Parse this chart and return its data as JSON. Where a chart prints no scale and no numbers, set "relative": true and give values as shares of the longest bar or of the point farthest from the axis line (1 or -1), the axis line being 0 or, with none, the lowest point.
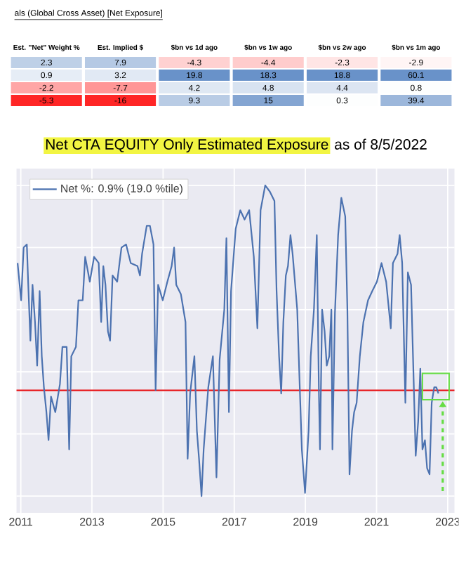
{
  "chart_data": [
    {
      "type": "heatmap",
      "title": "als (Global Cross Asset) [Net Exposure]",
      "categories": [
        "Est. \"Net\" Weight %",
        "Est. Implied $",
        "$bn vs 1d ago",
        "$bn vs 1w ago",
        "$bn vs 2w ago",
        "$bn vs 1m ago"
      ],
      "y_categories": [
        null,
        null,
        null,
        null
      ],
      "cells": [
        [
          2.3,
          7.9,
          -4.3,
          -4.4,
          -2.3,
          -2.9
        ],
        [
          0.9,
          3.2,
          19.8,
          18.3,
          18.8,
          60.1
        ],
        [
          -2.2,
          -7.7,
          4.2,
          4.8,
          4.4,
          0.8
        ],
        [
          -5.3,
          -16,
          9.3,
          15,
          0.3,
          39.4
        ]
      ],
      "data_labels": true
    },
    {
      "type": "line",
      "title": "Net CTA EQUITY Only Estimated Exposure",
      "subtitle": "as of 8/5/2022",
      "x": [
        2010.91,
        2011.01,
        2011.08,
        2011.17,
        2011.21,
        2011.27,
        2011.33,
        2011.4,
        2011.46,
        2011.53,
        2011.59,
        2011.65,
        2011.72,
        2011.78,
        2011.85,
        2011.97,
        2012.1,
        2012.17,
        2012.29,
        2012.36,
        2012.42,
        2012.55,
        2012.62,
        2012.74,
        2012.81,
        2012.94,
        2013.06,
        2013.19,
        2013.26,
        2013.32,
        2013.38,
        2013.45,
        2013.51,
        2013.58,
        2013.71,
        2013.83,
        2013.96,
        2014.09,
        2014.28,
        2014.35,
        2014.41,
        2014.54,
        2014.63,
        2014.73,
        2014.79,
        2014.86,
        2014.99,
        2015.12,
        2015.24,
        2015.31,
        2015.37,
        2015.5,
        2015.63,
        2015.69,
        2015.76,
        2015.88,
        2015.95,
        2016.01,
        2016.08,
        2016.14,
        2016.27,
        2016.4,
        2016.5,
        2016.59,
        2016.72,
        2016.78,
        2016.85,
        2016.91,
        2017.04,
        2017.17,
        2017.29,
        2017.42,
        2017.55,
        2017.65,
        2017.74,
        2017.87,
        2018.0,
        2018.13,
        2018.19,
        2018.26,
        2018.32,
        2018.38,
        2018.45,
        2018.51,
        2018.58,
        2018.64,
        2018.77,
        2018.83,
        2018.9,
        2018.99,
        2019.09,
        2019.15,
        2019.24,
        2019.32,
        2019.38,
        2019.41,
        2019.47,
        2019.54,
        2019.6,
        2019.67,
        2019.73,
        2019.76,
        2019.83,
        2019.92,
        2020.01,
        2020.12,
        2020.18,
        2020.24,
        2020.31,
        2020.37,
        2020.44,
        2020.53,
        2020.63,
        2020.76,
        2020.88,
        2021.01,
        2021.14,
        2021.27,
        2021.4,
        2021.46,
        2021.59,
        2021.65,
        2021.72,
        2021.81,
        2021.88,
        2021.97,
        2022.1,
        2022.17,
        2022.23,
        2022.29,
        2022.36,
        2022.42,
        2022.49,
        2022.55,
        2022.62,
        2022.68,
        2022.74
      ],
      "series": [
        {
          "name": "Net %:  0.9% (19.0 %tile)",
          "color": "#4c72b0",
          "values": [
            0.75,
            0.63,
            0.8,
            0.81,
            0.68,
            0.5,
            0.68,
            0.56,
            0.42,
            0.66,
            0.45,
            0.35,
            0.27,
            0.18,
            0.32,
            0.27,
            0.36,
            0.48,
            0.48,
            0.15,
            0.45,
            0.48,
            0.63,
            0.63,
            0.77,
            0.69,
            0.77,
            0.75,
            0.56,
            0.74,
            0.68,
            0.53,
            0.5,
            0.71,
            0.69,
            0.8,
            0.81,
            0.75,
            0.74,
            0.71,
            0.78,
            0.87,
            0.87,
            0.81,
            0.34,
            0.68,
            0.63,
            0.69,
            0.74,
            0.8,
            0.68,
            0.65,
            0.56,
            0.12,
            0.33,
            0.45,
            0.21,
            0.12,
            0.0,
            0.15,
            0.35,
            0.45,
            0.06,
            0.44,
            0.6,
            0.83,
            0.27,
            0.66,
            0.86,
            0.92,
            0.89,
            0.92,
            0.77,
            0.54,
            0.92,
            1.0,
            0.98,
            0.95,
            0.66,
            0.45,
            0.33,
            0.56,
            0.71,
            0.74,
            0.84,
            0.78,
            0.6,
            0.39,
            0.15,
            0.01,
            0.21,
            0.45,
            0.6,
            0.84,
            0.33,
            0.15,
            0.6,
            0.53,
            0.42,
            0.45,
            0.6,
            0.15,
            0.59,
            0.84,
            0.96,
            0.9,
            0.6,
            0.07,
            0.21,
            0.27,
            0.3,
            0.45,
            0.56,
            0.63,
            0.66,
            0.69,
            0.75,
            0.69,
            0.54,
            0.75,
            0.78,
            0.84,
            0.75,
            0.3,
            0.72,
            0.68,
            0.13,
            0.24,
            0.41,
            0.15,
            0.18,
            0.09,
            0.07,
            0.3,
            0.35,
            0.35,
            0.33
          ]
        }
      ],
      "relative": true,
      "xlim": [
        2010.88,
        2023.19
      ],
      "xticks": [
        2011,
        2013,
        2015,
        2017,
        2019,
        2021,
        2023
      ],
      "ref_lines": [
        {
          "axis": "y",
          "value": 0.34,
          "color": "#e8262a"
        }
      ],
      "grid": true,
      "legend": "top left",
      "tick_labels": "x"
    }
  ]
}
